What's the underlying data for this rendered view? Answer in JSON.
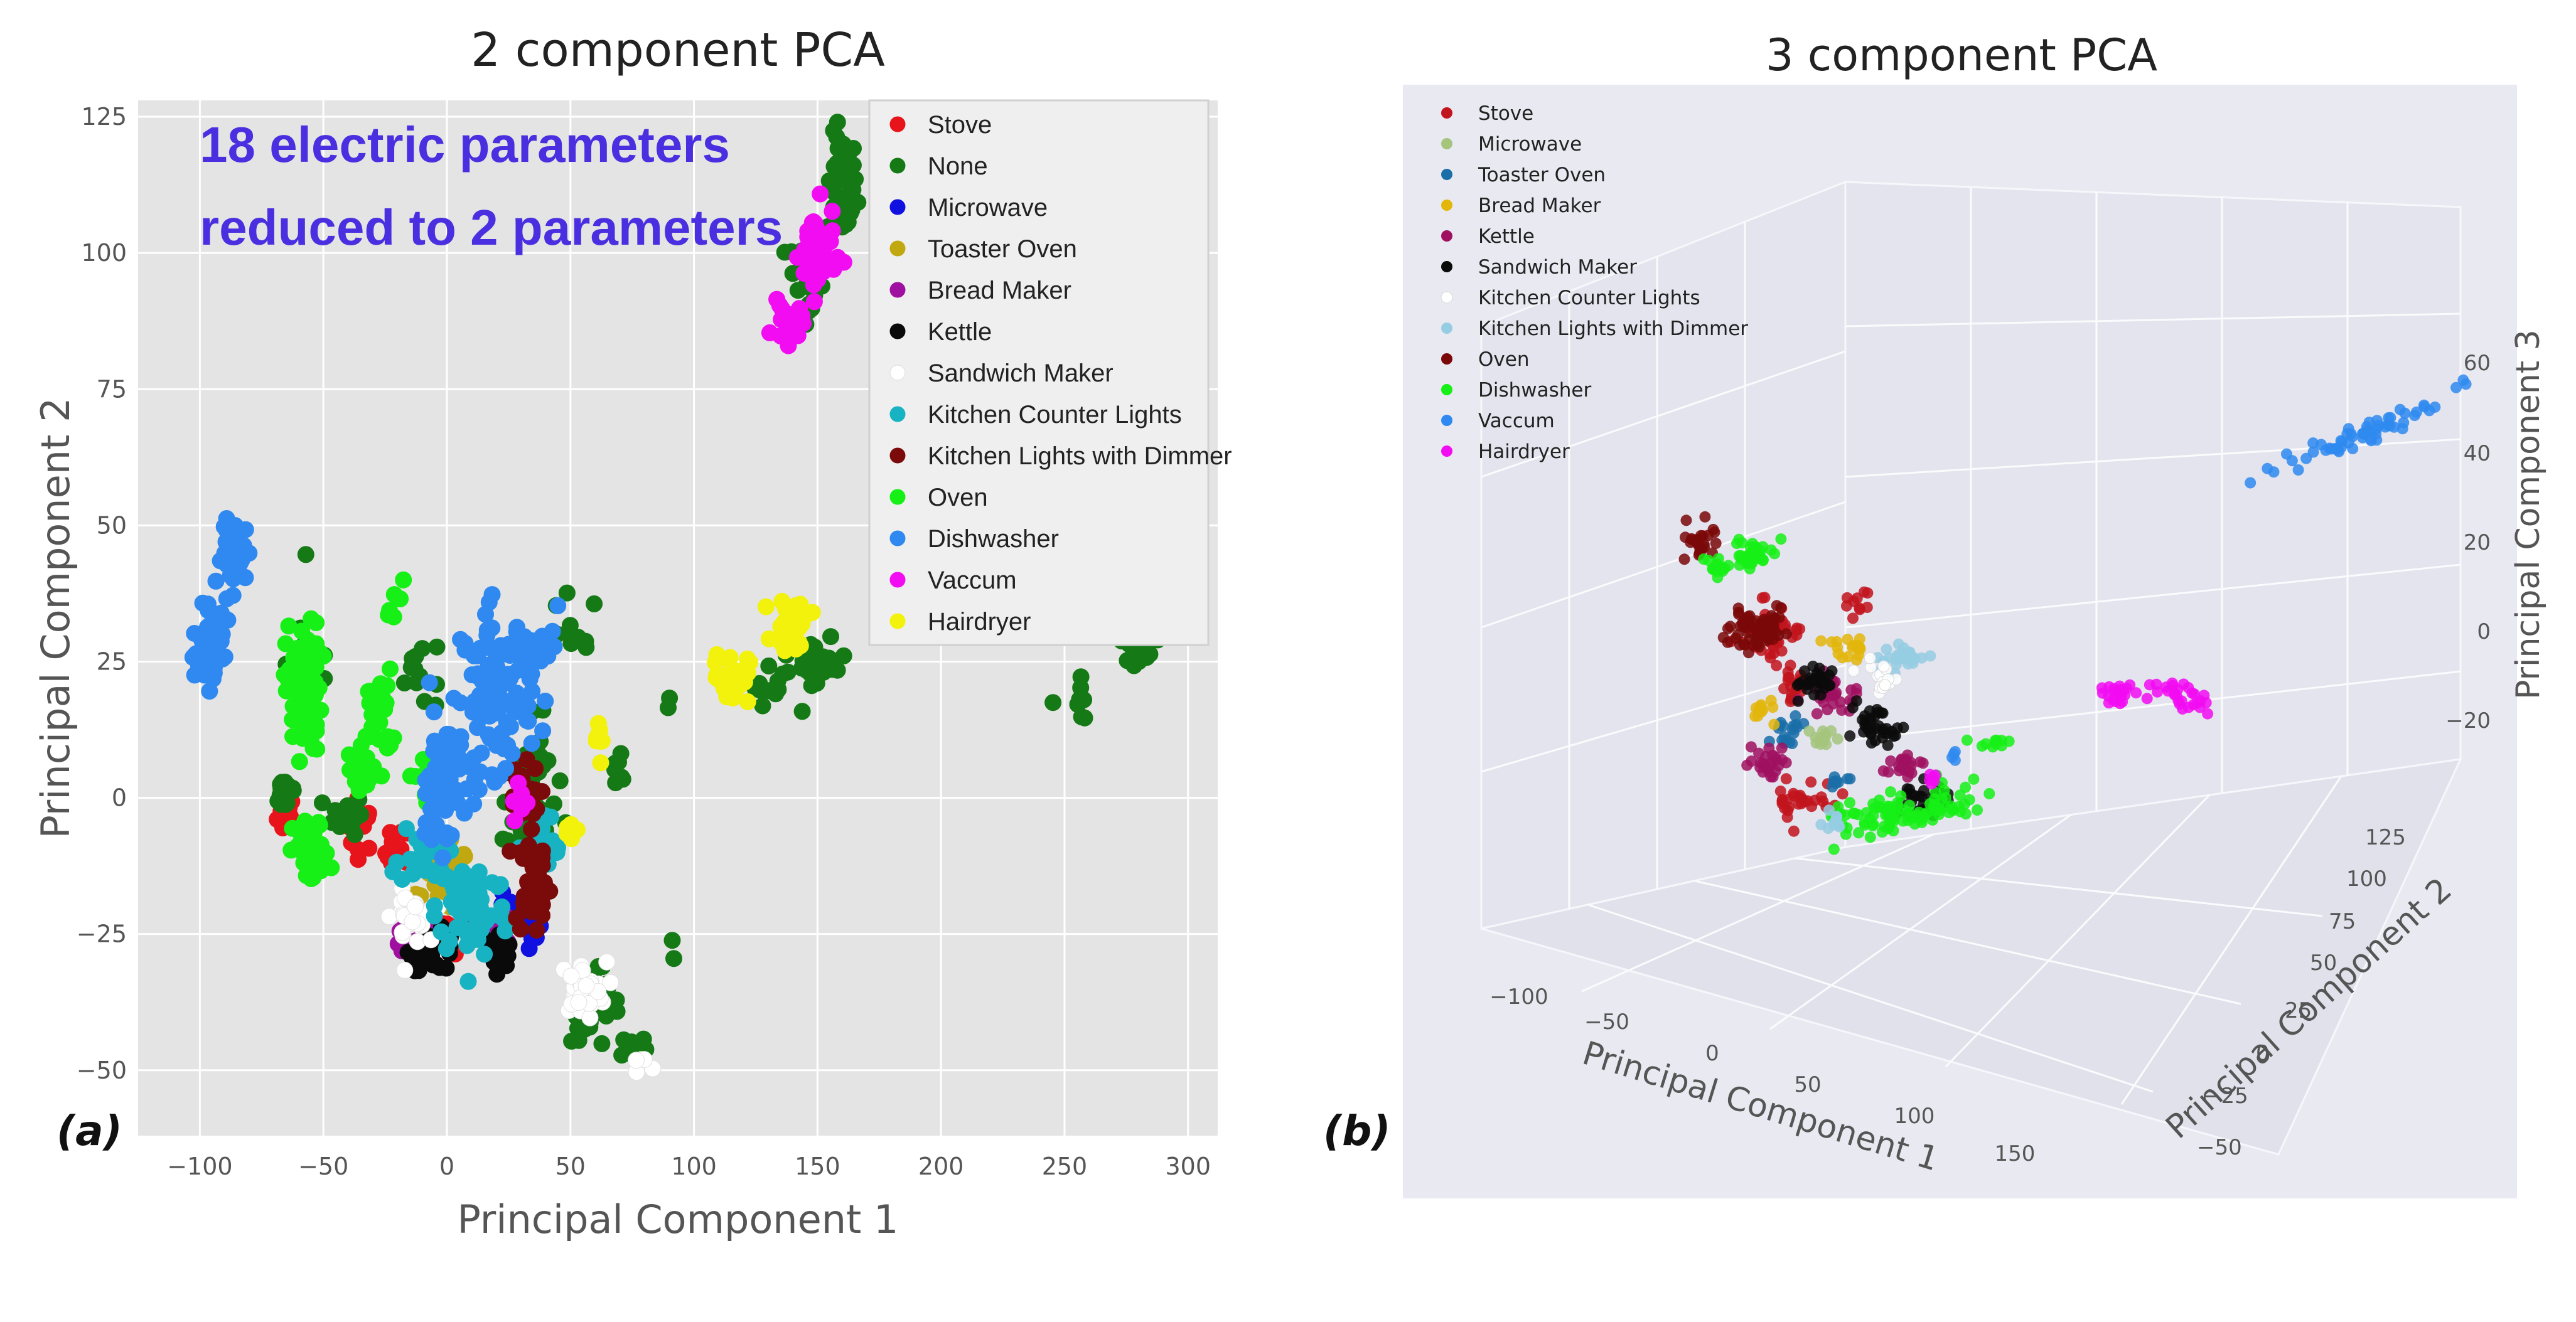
{
  "chart_data": [
    {
      "panel": "a",
      "panel_label": "(a)",
      "type": "scatter",
      "title": "2 component PCA",
      "xlabel": "Principal Component 1",
      "ylabel": "Principal Component 2",
      "xlim": [
        -125,
        312
      ],
      "ylim": [
        -62,
        128
      ],
      "xticks": [
        -100,
        -50,
        0,
        50,
        100,
        150,
        200,
        250,
        300
      ],
      "yticks": [
        -50,
        -25,
        0,
        25,
        50,
        75,
        100,
        125
      ],
      "xtick_labels": [
        "−100",
        "−50",
        "0",
        "50",
        "100",
        "150",
        "200",
        "250",
        "300"
      ],
      "ytick_labels": [
        "−50",
        "−25",
        "0",
        "25",
        "50",
        "75",
        "100",
        "125"
      ],
      "grid": true,
      "legend_position": "top-right",
      "annotation": [
        "18 electric parameters",
        "reduced to 2 parameters"
      ],
      "annotation_color": "#4a2fe0",
      "series": [
        {
          "name": "Stove",
          "color": "#e8141c",
          "clusters": [
            [
              -65,
              -3,
              3,
              3,
              15
            ],
            [
              -35,
              -5,
              5,
              4,
              15
            ],
            [
              -20,
              -10,
              4,
              4,
              12
            ],
            [
              0,
              -25,
              8,
              3,
              12
            ]
          ]
        },
        {
          "name": "None",
          "color": "#157a16",
          "clusters": [
            [
              160,
              112,
              5,
              8,
              55
            ],
            [
              145,
              95,
              6,
              8,
              30
            ],
            [
              -65,
              1,
              4,
              3,
              20
            ],
            [
              -40,
              -3,
              5,
              3,
              20
            ],
            [
              35,
              5,
              8,
              8,
              25
            ],
            [
              30,
              -5,
              6,
              6,
              25
            ],
            [
              70,
              5,
              4,
              3,
              8
            ],
            [
              130,
              22,
              6,
              4,
              15
            ],
            [
              150,
              24,
              10,
              4,
              25
            ],
            [
              280,
              29,
              8,
              3,
              25
            ],
            [
              255,
              18,
              10,
              3,
              8
            ],
            [
              60,
              -38,
              8,
              6,
              40
            ],
            [
              75,
              -45,
              10,
              3,
              8
            ],
            [
              -55,
              25,
              8,
              10,
              10
            ],
            [
              -10,
              23,
              10,
              6,
              12
            ],
            [
              50,
              30,
              10,
              6,
              10
            ],
            [
              92,
              -28,
              3,
              3,
              2
            ],
            [
              88,
              16,
              3,
              3,
              2
            ]
          ]
        },
        {
          "name": "Microwave",
          "color": "#1010e0",
          "clusters": [
            [
              35,
              -25,
              3,
              3,
              10
            ],
            [
              25,
              -20,
              3,
              3,
              6
            ]
          ]
        },
        {
          "name": "Toaster Oven",
          "color": "#c2a810",
          "clusters": [
            [
              0,
              -15,
              8,
              5,
              35
            ]
          ]
        },
        {
          "name": "Bread Maker",
          "color": "#a010a0",
          "clusters": [
            [
              -15,
              -25,
              5,
              3,
              20
            ],
            [
              20,
              -25,
              5,
              3,
              12
            ]
          ]
        },
        {
          "name": "Kettle",
          "color": "#0a0a0a",
          "clusters": [
            [
              -5,
              -28,
              8,
              3,
              30
            ],
            [
              20,
              -28,
              6,
              3,
              15
            ]
          ]
        },
        {
          "name": "Sandwich Maker",
          "color": "#ffffff",
          "clusters": [
            [
              -15,
              -22,
              6,
              4,
              30
            ],
            [
              55,
              -35,
              8,
              4,
              30
            ],
            [
              78,
              -50,
              6,
              2,
              6
            ]
          ]
        },
        {
          "name": "Kitchen Counter Lights",
          "color": "#17b3c3",
          "clusters": [
            [
              10,
              -20,
              12,
              8,
              80
            ],
            [
              40,
              -10,
              6,
              6,
              20
            ],
            [
              -10,
              -10,
              8,
              5,
              25
            ]
          ]
        },
        {
          "name": "Kitchen Lights with Dimmer",
          "color": "#7b0b0b",
          "clusters": [
            [
              35,
              -15,
              6,
              8,
              40
            ],
            [
              30,
              0,
              6,
              5,
              25
            ]
          ]
        },
        {
          "name": "Oven",
          "color": "#16f016",
          "clusters": [
            [
              -58,
              20,
              6,
              10,
              80
            ],
            [
              -55,
              -10,
              6,
              5,
              50
            ],
            [
              -28,
              15,
              5,
              7,
              25
            ],
            [
              -35,
              5,
              4,
              4,
              15
            ],
            [
              -20,
              37,
              4,
              3,
              6
            ],
            [
              -10,
              3,
              4,
              4,
              8
            ]
          ]
        },
        {
          "name": "Dishwasher",
          "color": "#2f89f0",
          "clusters": [
            [
              -95,
              29,
              4,
              5,
              60
            ],
            [
              -85,
              45,
              5,
              5,
              50
            ],
            [
              20,
              20,
              12,
              12,
              120
            ],
            [
              0,
              5,
              8,
              8,
              60
            ],
            [
              -5,
              -5,
              5,
              4,
              20
            ],
            [
              40,
              27,
              5,
              6,
              15
            ],
            [
              -100,
              25,
              3,
              3,
              20
            ]
          ]
        },
        {
          "name": "Vaccum",
          "color": "#f20cf2",
          "clusters": [
            [
              150,
              100,
              6,
              7,
              55
            ],
            [
              138,
              87,
              5,
              3,
              20
            ],
            [
              30,
              -2,
              4,
              3,
              6
            ]
          ]
        },
        {
          "name": "Hairdryer",
          "color": "#f2f20c",
          "clusters": [
            [
              140,
              32,
              6,
              4,
              35
            ],
            [
              115,
              22,
              6,
              4,
              30
            ],
            [
              50,
              -5,
              3,
              3,
              6
            ],
            [
              62,
              10,
              3,
              4,
              8
            ]
          ]
        },
        {
          "name": "",
          "color": "#a7cfa2",
          "clusters": [
            [
              258,
              43,
              8,
              2,
              20
            ]
          ]
        }
      ]
    },
    {
      "panel": "b",
      "panel_label": "(b)",
      "type": "scatter",
      "title": "3 component PCA",
      "xlabel": "Principal Component 1",
      "ylabel": "Principal Component 2",
      "zlabel": "Principal Component 3",
      "xticks": [
        "−100",
        "−50",
        "0",
        "50",
        "100",
        "150"
      ],
      "yticks": [
        "−50",
        "−25",
        "0",
        "25",
        "50",
        "75",
        "100",
        "125"
      ],
      "zticks": [
        "−20",
        "0",
        "20",
        "40",
        "60"
      ],
      "grid": true,
      "legend_position": "top-left",
      "background": "#e9e9f1",
      "series": [
        {
          "name": "Stove",
          "color": "#c2141c"
        },
        {
          "name": "Microwave",
          "color": "#a5c47c"
        },
        {
          "name": "Toaster Oven",
          "color": "#1a6fa8"
        },
        {
          "name": "Bread Maker",
          "color": "#e3b60c"
        },
        {
          "name": "Kettle",
          "color": "#a01060"
        },
        {
          "name": "Sandwich Maker",
          "color": "#0a0a0a"
        },
        {
          "name": "Kitchen Counter Lights",
          "color": "#ffffff"
        },
        {
          "name": "Kitchen Lights with Dimmer",
          "color": "#95cde3"
        },
        {
          "name": "Oven",
          "color": "#7a0808"
        },
        {
          "name": "Dishwasher",
          "color": "#16f016"
        },
        {
          "name": "Vaccum",
          "color": "#2f89f0"
        },
        {
          "name": "Hairdryer",
          "color": "#f20cf2"
        }
      ]
    }
  ]
}
